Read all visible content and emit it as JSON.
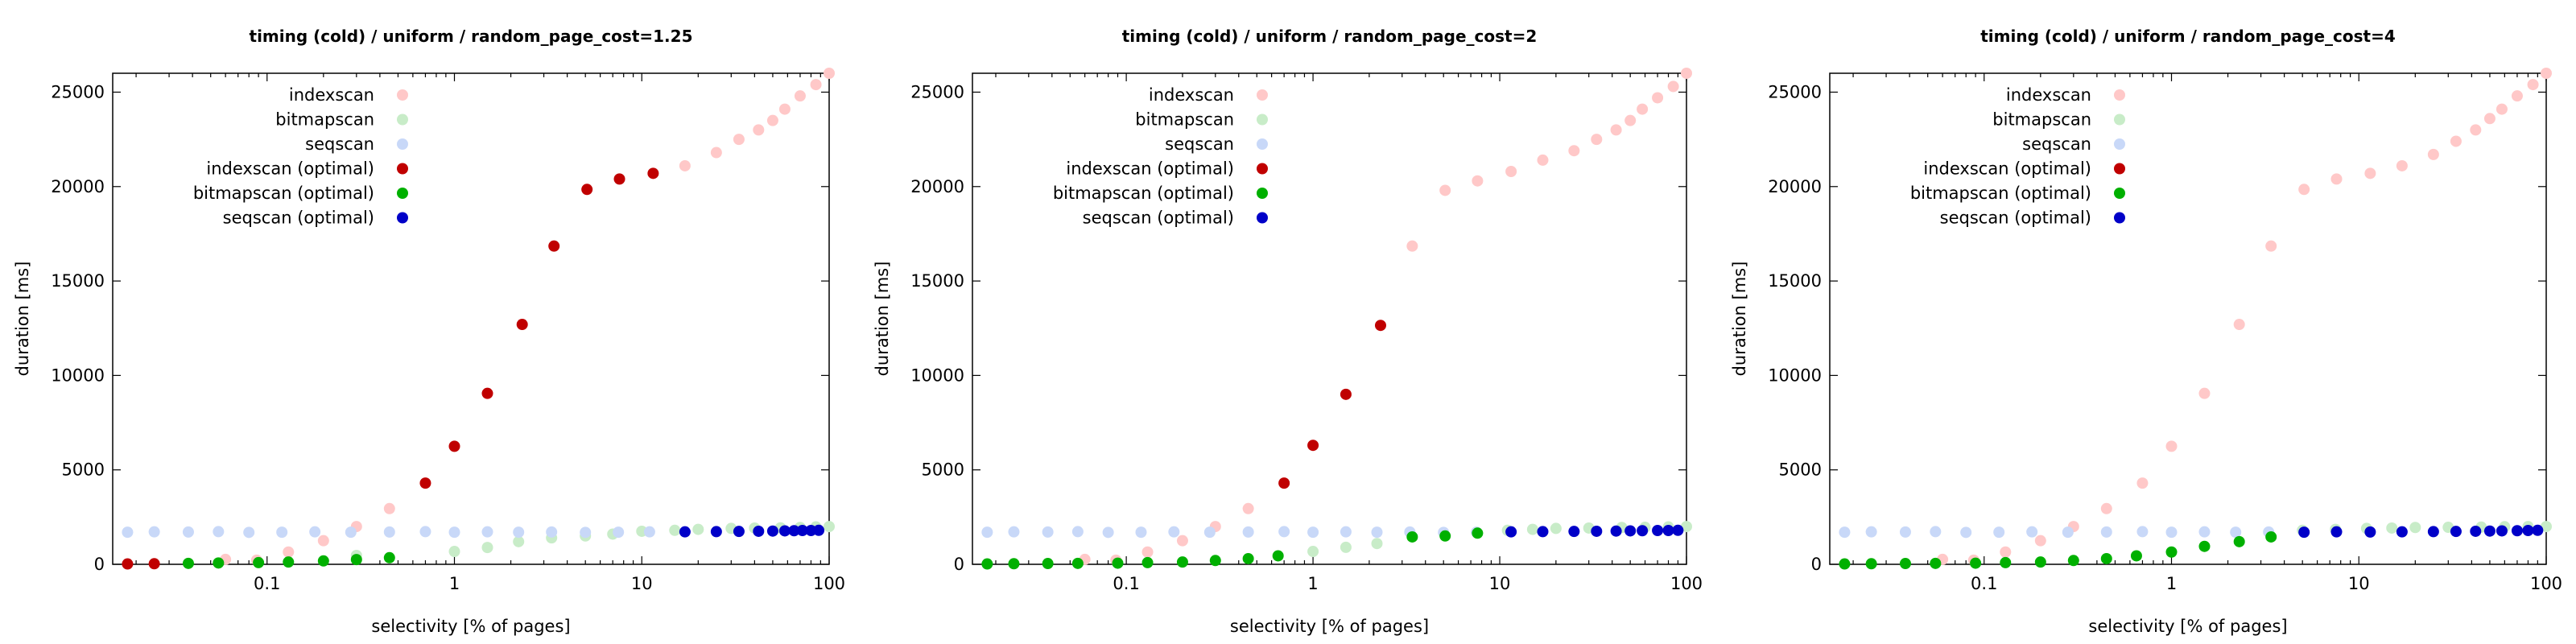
{
  "chart_data": [
    {
      "type": "scatter",
      "title": "timing (cold) / uniform / random_page_cost=1.25",
      "xlabel": "selectivity [% of pages]",
      "ylabel": "duration [ms]",
      "xscale": "log",
      "xlim": [
        0.015,
        100
      ],
      "ylim": [
        0,
        26000
      ],
      "xticks": [
        "0.1",
        "1",
        "10",
        "100"
      ],
      "yticks": [
        "0",
        "5000",
        "10000",
        "15000",
        "20000",
        "25000"
      ],
      "legend_position": "top-left",
      "series": [
        {
          "name": "indexscan",
          "color": "#ffc8c8",
          "points": [
            [
              0.06,
              260
            ],
            [
              0.088,
              220
            ],
            [
              0.13,
              650
            ],
            [
              0.2,
              1250
            ],
            [
              0.3,
              2000
            ],
            [
              0.45,
              2950
            ]
          ]
        },
        {
          "name": "bitmapscan",
          "color": "#c8ecc8",
          "points": [
            [
              0.3,
              470
            ],
            [
              1,
              680
            ],
            [
              1.5,
              890
            ],
            [
              2.2,
              1200
            ],
            [
              3.3,
              1400
            ],
            [
              5,
              1500
            ],
            [
              7,
              1600
            ],
            [
              10,
              1750
            ],
            [
              15,
              1800
            ],
            [
              20,
              1850
            ],
            [
              30,
              1900
            ],
            [
              40,
              1920
            ],
            [
              55,
              1930
            ],
            [
              70,
              1950
            ],
            [
              85,
              1980
            ],
            [
              100,
              2000
            ]
          ]
        },
        {
          "name": "seqscan",
          "color": "#c8d8f8",
          "points": [
            [
              0.018,
              1700
            ],
            [
              0.025,
              1720
            ],
            [
              0.038,
              1710
            ],
            [
              0.055,
              1730
            ],
            [
              0.08,
              1690
            ],
            [
              0.12,
              1700
            ],
            [
              0.18,
              1720
            ],
            [
              0.28,
              1700
            ],
            [
              0.45,
              1710
            ],
            [
              0.7,
              1730
            ],
            [
              1,
              1700
            ],
            [
              1.5,
              1720
            ],
            [
              2.2,
              1700
            ],
            [
              3.3,
              1710
            ],
            [
              5,
              1690
            ],
            [
              7.5,
              1700
            ],
            [
              11,
              1720
            ]
          ]
        },
        {
          "name": "indexscan (optimal)",
          "color": "#c00000",
          "points": [
            [
              0.018,
              20
            ],
            [
              0.025,
              30
            ]
          ]
        },
        {
          "name": "bitmapscan (optimal)",
          "color": "#00b000",
          "points": [
            [
              0.038,
              50
            ],
            [
              0.055,
              70
            ],
            [
              0.09,
              90
            ],
            [
              0.13,
              120
            ],
            [
              0.2,
              180
            ],
            [
              0.3,
              250
            ],
            [
              0.45,
              350
            ]
          ]
        },
        {
          "name": "seqscan (optimal)",
          "color": "#0000c8",
          "points": [
            [
              17,
              1720
            ],
            [
              25,
              1730
            ],
            [
              33,
              1740
            ],
            [
              42,
              1750
            ],
            [
              50,
              1760
            ],
            [
              58,
              1770
            ],
            [
              65,
              1780
            ],
            [
              72,
              1790
            ],
            [
              80,
              1790
            ],
            [
              88,
              1800
            ]
          ]
        }
      ],
      "highlighted_points": [
        [
          0.7,
          4300
        ],
        [
          1,
          6250
        ],
        [
          1.5,
          9050
        ],
        [
          2.3,
          12700
        ],
        [
          3.4,
          16850
        ],
        [
          5.1,
          19850
        ],
        [
          7.6,
          20400
        ],
        [
          11.5,
          20700
        ]
      ],
      "extra_indexscan_points": [
        [
          17,
          21100
        ],
        [
          25,
          21800
        ],
        [
          33,
          22500
        ],
        [
          42,
          23000
        ],
        [
          50,
          23500
        ],
        [
          58,
          24100
        ],
        [
          70,
          24800
        ],
        [
          85,
          25400
        ],
        [
          100,
          26000
        ]
      ]
    },
    {
      "type": "scatter",
      "title": "timing (cold) / uniform / random_page_cost=2",
      "xlabel": "selectivity [% of pages]",
      "ylabel": "duration [ms]",
      "xscale": "log",
      "xlim": [
        0.015,
        100
      ],
      "ylim": [
        0,
        26000
      ],
      "xticks": [
        "0.1",
        "1",
        "10",
        "100"
      ],
      "yticks": [
        "0",
        "5000",
        "10000",
        "15000",
        "20000",
        "25000"
      ],
      "legend_position": "top-left",
      "series": [
        {
          "name": "indexscan",
          "color": "#ffc8c8",
          "points": [
            [
              0.06,
              260
            ],
            [
              0.088,
              220
            ],
            [
              0.13,
              650
            ],
            [
              0.2,
              1250
            ],
            [
              0.3,
              2000
            ],
            [
              0.45,
              2950
            ],
            [
              3.4,
              16850
            ],
            [
              5.1,
              19800
            ],
            [
              7.6,
              20300
            ],
            [
              11.5,
              20800
            ],
            [
              17,
              21400
            ],
            [
              25,
              21900
            ],
            [
              33,
              22500
            ],
            [
              42,
              23000
            ],
            [
              50,
              23500
            ],
            [
              58,
              24100
            ],
            [
              70,
              24700
            ],
            [
              85,
              25300
            ],
            [
              100,
              26000
            ]
          ]
        },
        {
          "name": "bitmapscan",
          "color": "#c8ecc8",
          "points": [
            [
              1,
              680
            ],
            [
              1.5,
              900
            ],
            [
              2.2,
              1100
            ],
            [
              11,
              1800
            ],
            [
              15,
              1850
            ],
            [
              20,
              1900
            ],
            [
              30,
              1920
            ],
            [
              45,
              1950
            ],
            [
              60,
              1960
            ],
            [
              80,
              1980
            ],
            [
              100,
              2000
            ]
          ]
        },
        {
          "name": "seqscan",
          "color": "#c8d8f8",
          "points": [
            [
              0.018,
              1700
            ],
            [
              0.025,
              1720
            ],
            [
              0.038,
              1710
            ],
            [
              0.055,
              1730
            ],
            [
              0.08,
              1690
            ],
            [
              0.12,
              1700
            ],
            [
              0.18,
              1720
            ],
            [
              0.28,
              1700
            ],
            [
              0.45,
              1710
            ],
            [
              0.7,
              1730
            ],
            [
              1,
              1700
            ],
            [
              1.5,
              1720
            ],
            [
              2.2,
              1700
            ],
            [
              3.3,
              1710
            ],
            [
              5,
              1690
            ],
            [
              7.5,
              1700
            ]
          ]
        },
        {
          "name": "indexscan (optimal)",
          "color": "#c00000",
          "points": [
            [
              0.7,
              4300
            ],
            [
              1,
              6300
            ],
            [
              1.5,
              9000
            ],
            [
              2.3,
              12650
            ]
          ]
        },
        {
          "name": "bitmapscan (optimal)",
          "color": "#00b000",
          "points": [
            [
              0.018,
              20
            ],
            [
              0.025,
              30
            ],
            [
              0.038,
              40
            ],
            [
              0.055,
              50
            ],
            [
              0.09,
              60
            ],
            [
              0.13,
              90
            ],
            [
              0.2,
              120
            ],
            [
              0.3,
              200
            ],
            [
              0.45,
              300
            ],
            [
              0.65,
              450
            ],
            [
              3.4,
              1450
            ],
            [
              5.1,
              1500
            ],
            [
              7.6,
              1650
            ]
          ]
        },
        {
          "name": "seqscan (optimal)",
          "color": "#0000c8",
          "points": [
            [
              11.5,
              1720
            ],
            [
              17,
              1730
            ],
            [
              25,
              1740
            ],
            [
              33,
              1750
            ],
            [
              42,
              1760
            ],
            [
              50,
              1770
            ],
            [
              58,
              1780
            ],
            [
              70,
              1790
            ],
            [
              80,
              1790
            ],
            [
              90,
              1800
            ]
          ]
        }
      ]
    },
    {
      "type": "scatter",
      "title": "timing (cold) / uniform / random_page_cost=4",
      "xlabel": "selectivity [% of pages]",
      "ylabel": "duration [ms]",
      "xscale": "log",
      "xlim": [
        0.015,
        100
      ],
      "ylim": [
        0,
        26000
      ],
      "xticks": [
        "0.1",
        "1",
        "10",
        "100"
      ],
      "yticks": [
        "0",
        "5000",
        "10000",
        "15000",
        "20000",
        "25000"
      ],
      "legend_position": "top-left",
      "series": [
        {
          "name": "indexscan",
          "color": "#ffc8c8",
          "points": [
            [
              0.06,
              260
            ],
            [
              0.088,
              220
            ],
            [
              0.13,
              650
            ],
            [
              0.2,
              1250
            ],
            [
              0.3,
              2000
            ],
            [
              0.45,
              2950
            ],
            [
              0.7,
              4300
            ],
            [
              1,
              6250
            ],
            [
              1.5,
              9050
            ],
            [
              2.3,
              12700
            ],
            [
              3.4,
              16850
            ],
            [
              5.1,
              19850
            ],
            [
              7.6,
              20400
            ],
            [
              11.5,
              20700
            ],
            [
              17,
              21100
            ],
            [
              25,
              21700
            ],
            [
              33,
              22400
            ],
            [
              42,
              23000
            ],
            [
              50,
              23600
            ],
            [
              58,
              24100
            ],
            [
              70,
              24800
            ],
            [
              85,
              25400
            ],
            [
              100,
              26000
            ]
          ]
        },
        {
          "name": "bitmapscan",
          "color": "#c8ecc8",
          "points": [
            [
              5,
              1800
            ],
            [
              7.5,
              1850
            ],
            [
              11,
              1900
            ],
            [
              15,
              1920
            ],
            [
              20,
              1950
            ],
            [
              30,
              1960
            ],
            [
              45,
              1970
            ],
            [
              60,
              1990
            ],
            [
              80,
              2000
            ],
            [
              100,
              2000
            ]
          ]
        },
        {
          "name": "seqscan",
          "color": "#c8d8f8",
          "points": [
            [
              0.018,
              1700
            ],
            [
              0.025,
              1720
            ],
            [
              0.038,
              1710
            ],
            [
              0.055,
              1730
            ],
            [
              0.08,
              1690
            ],
            [
              0.12,
              1700
            ],
            [
              0.18,
              1720
            ],
            [
              0.28,
              1700
            ],
            [
              0.45,
              1710
            ],
            [
              0.7,
              1730
            ],
            [
              1,
              1700
            ],
            [
              1.5,
              1720
            ],
            [
              2.2,
              1700
            ],
            [
              3.3,
              1710
            ]
          ]
        },
        {
          "name": "indexscan (optimal)",
          "color": "#c00000",
          "points": []
        },
        {
          "name": "bitmapscan (optimal)",
          "color": "#00b000",
          "points": [
            [
              0.018,
              20
            ],
            [
              0.025,
              30
            ],
            [
              0.038,
              40
            ],
            [
              0.055,
              50
            ],
            [
              0.09,
              60
            ],
            [
              0.13,
              90
            ],
            [
              0.2,
              120
            ],
            [
              0.3,
              200
            ],
            [
              0.45,
              300
            ],
            [
              0.65,
              450
            ],
            [
              1,
              650
            ],
            [
              1.5,
              950
            ],
            [
              2.3,
              1200
            ],
            [
              3.4,
              1450
            ]
          ]
        },
        {
          "name": "seqscan (optimal)",
          "color": "#0000c8",
          "points": [
            [
              5.1,
              1700
            ],
            [
              7.6,
              1720
            ],
            [
              11.5,
              1710
            ],
            [
              17,
              1720
            ],
            [
              25,
              1730
            ],
            [
              33,
              1740
            ],
            [
              42,
              1750
            ],
            [
              50,
              1760
            ],
            [
              58,
              1770
            ],
            [
              70,
              1780
            ],
            [
              80,
              1790
            ],
            [
              90,
              1800
            ]
          ]
        }
      ]
    }
  ]
}
